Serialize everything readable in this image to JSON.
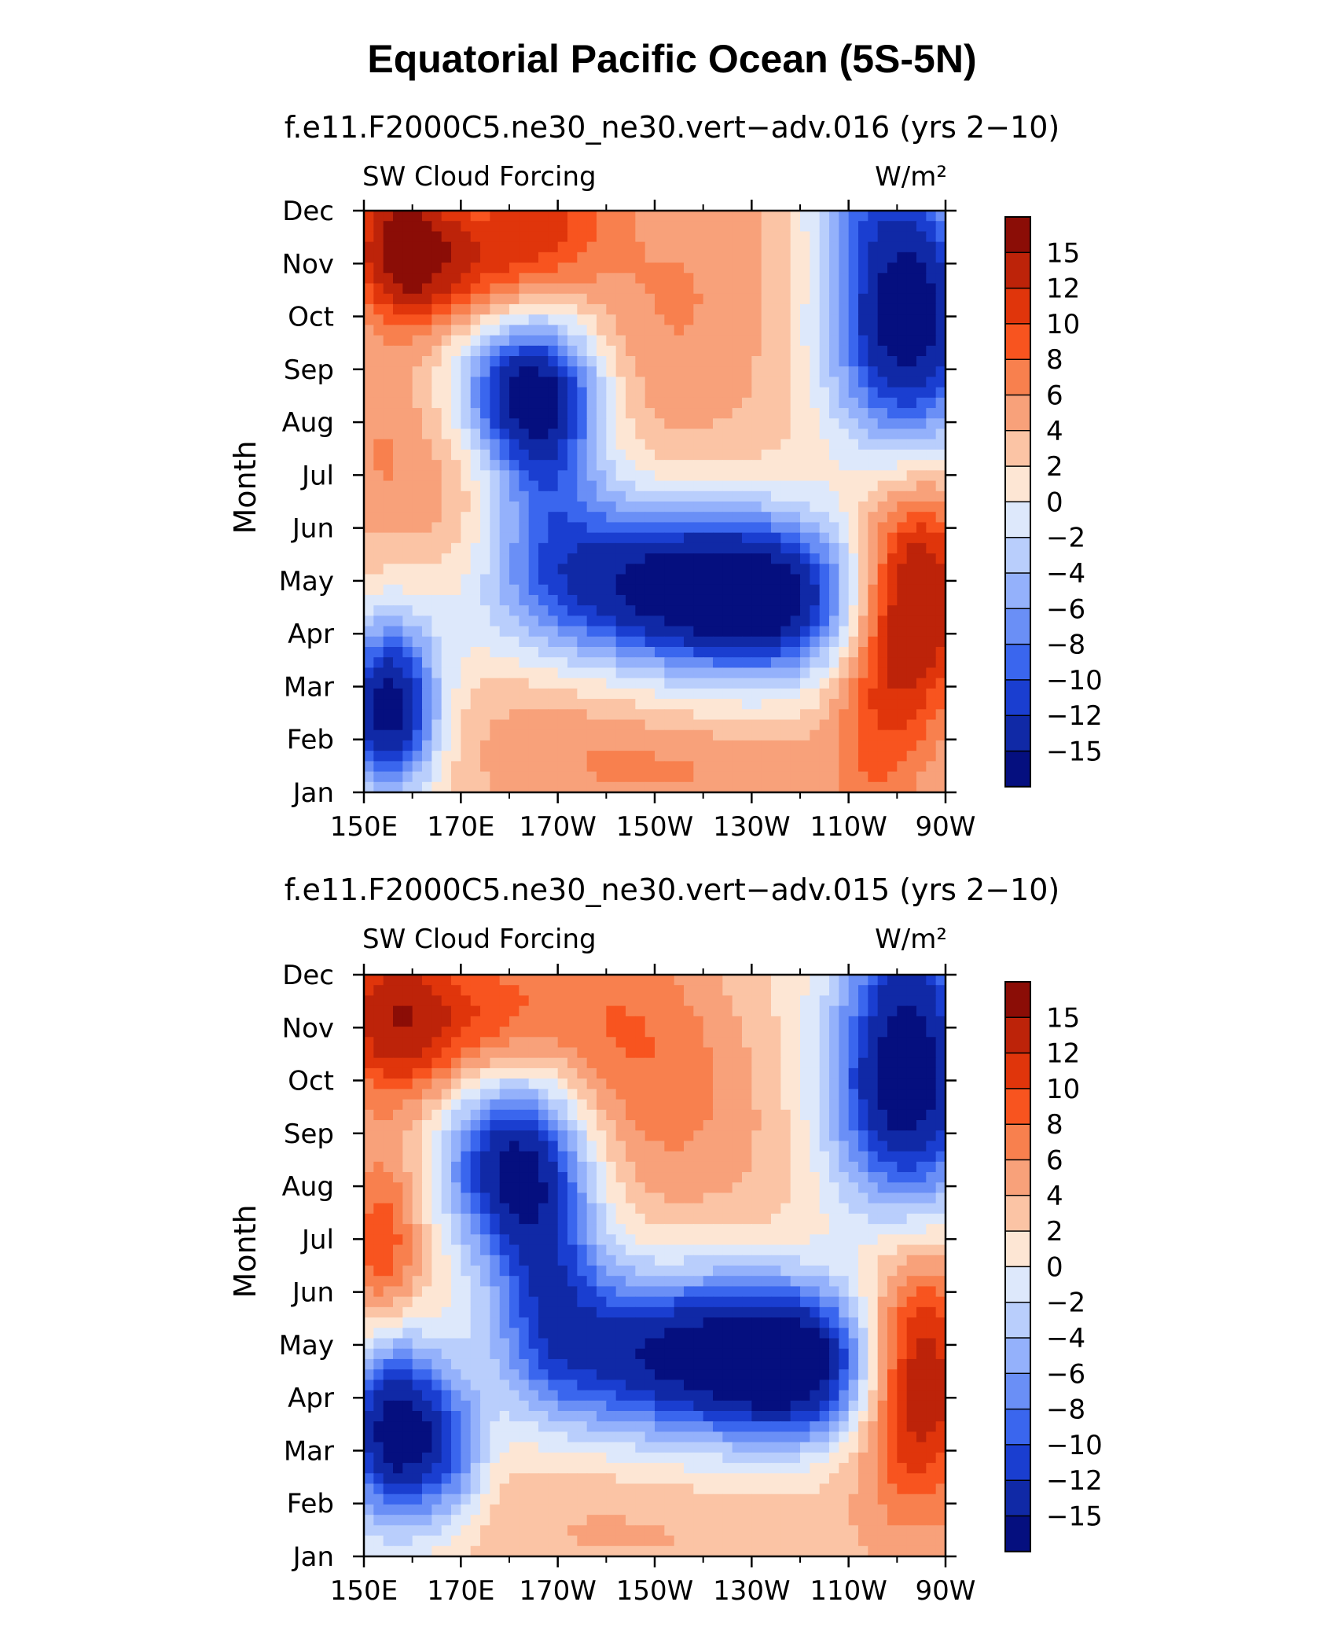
{
  "title": "Equatorial Pacific Ocean (5S-5N)",
  "colorbar_levels": [
    "15",
    "12",
    "10",
    "8",
    "6",
    "4",
    "2",
    "0",
    "−2",
    "−4",
    "−6",
    "−8",
    "−10",
    "−12",
    "−15"
  ],
  "colorbar_colors": [
    "#8b0d06",
    "#bd2309",
    "#e0350b",
    "#f8541f",
    "#f8804e",
    "#f8a17a",
    "#fbc4a5",
    "#fde6d4",
    "#dde8fb",
    "#b9cefc",
    "#94b1fb",
    "#6a8ff6",
    "#3a66ee",
    "#1a3ed0",
    "#1029a6",
    "#050f7f"
  ],
  "chart_data": [
    {
      "type": "heatmap",
      "title": "f.e11.F2000C5.ne30_ne30.vert−adv.016 (yrs 2−10)",
      "left_label": "SW Cloud Forcing",
      "units": "W/m²",
      "xlabel": "",
      "ylabel": "Month",
      "x_tick_labels": [
        "150E",
        "170E",
        "170W",
        "150W",
        "130W",
        "110W",
        "90W"
      ],
      "x_tick_lon_east": [
        150,
        170,
        190,
        210,
        230,
        250,
        270
      ],
      "xlim": [
        150,
        270
      ],
      "y_tick_labels": [
        "Jan",
        "Feb",
        "Mar",
        "Apr",
        "May",
        "Jun",
        "Jul",
        "Aug",
        "Sep",
        "Oct",
        "Nov",
        "Dec"
      ],
      "features": [
        {
          "lon": 158,
          "month": 10.3,
          "value": 16,
          "width": 10,
          "height": 1.3
        },
        {
          "lon": 172,
          "month": 10.0,
          "value": 10,
          "width": 16,
          "height": 1.2
        },
        {
          "lon": 188,
          "month": 11.0,
          "value": 9,
          "width": 14,
          "height": 1.4
        },
        {
          "lon": 212,
          "month": 8.8,
          "value": 6,
          "width": 22,
          "height": 2.6
        },
        {
          "lon": 228,
          "month": 10.6,
          "value": 4,
          "width": 18,
          "height": 1.6
        },
        {
          "lon": 154,
          "month": 6.4,
          "value": 6,
          "width": 10,
          "height": 1.8
        },
        {
          "lon": 168,
          "month": 5.6,
          "value": 5,
          "width": 10,
          "height": 1.8
        },
        {
          "lon": 184,
          "month": 7.6,
          "value": -14,
          "width": 14,
          "height": 1.4
        },
        {
          "lon": 188,
          "month": 6.0,
          "value": -5,
          "width": 12,
          "height": 2.2
        },
        {
          "lon": 212,
          "month": 3.9,
          "value": -16,
          "width": 30,
          "height": 1.6
        },
        {
          "lon": 235,
          "month": 3.6,
          "value": -9,
          "width": 18,
          "height": 1.4
        },
        {
          "lon": 262,
          "month": 9.0,
          "value": -18,
          "width": 16,
          "height": 2.6
        },
        {
          "lon": 252,
          "month": 11.4,
          "value": -2,
          "width": 12,
          "height": 1.2
        },
        {
          "lon": 264,
          "month": 3.8,
          "value": 16,
          "width": 12,
          "height": 2.2
        },
        {
          "lon": 256,
          "month": 1.4,
          "value": 8,
          "width": 10,
          "height": 2.4
        },
        {
          "lon": 155,
          "month": 1.6,
          "value": -17,
          "width": 10,
          "height": 1.6
        },
        {
          "lon": 190,
          "month": 1.4,
          "value": 5,
          "width": 22,
          "height": 1.4
        },
        {
          "lon": 215,
          "month": 0.4,
          "value": 6,
          "width": 30,
          "height": 1.0
        },
        {
          "lon": 170,
          "month": 3.0,
          "value": 2,
          "width": 14,
          "height": 1.2
        }
      ]
    },
    {
      "type": "heatmap",
      "title": "f.e11.F2000C5.ne30_ne30.vert−adv.015 (yrs 2−10)",
      "left_label": "SW Cloud Forcing",
      "units": "W/m²",
      "xlabel": "",
      "ylabel": "Month",
      "x_tick_labels": [
        "150E",
        "170E",
        "170W",
        "150W",
        "130W",
        "110W",
        "90W"
      ],
      "x_tick_lon_east": [
        150,
        170,
        190,
        210,
        230,
        250,
        270
      ],
      "xlim": [
        150,
        270
      ],
      "y_tick_labels": [
        "Jan",
        "Feb",
        "Mar",
        "Apr",
        "May",
        "Jun",
        "Jul",
        "Aug",
        "Sep",
        "Oct",
        "Nov",
        "Dec"
      ],
      "features": [
        {
          "lon": 156,
          "month": 10.2,
          "value": 14,
          "width": 12,
          "height": 1.5
        },
        {
          "lon": 174,
          "month": 10.0,
          "value": 9,
          "width": 14,
          "height": 1.4
        },
        {
          "lon": 198,
          "month": 10.2,
          "value": 7,
          "width": 22,
          "height": 2.0
        },
        {
          "lon": 214,
          "month": 8.6,
          "value": 6,
          "width": 20,
          "height": 2.4
        },
        {
          "lon": 232,
          "month": 10.6,
          "value": 2,
          "width": 16,
          "height": 1.6
        },
        {
          "lon": 154,
          "month": 5.8,
          "value": 10,
          "width": 8,
          "height": 1.8
        },
        {
          "lon": 166,
          "month": 5.2,
          "value": 3,
          "width": 10,
          "height": 1.8
        },
        {
          "lon": 180,
          "month": 7.5,
          "value": -14,
          "width": 14,
          "height": 1.8
        },
        {
          "lon": 188,
          "month": 5.4,
          "value": -7,
          "width": 12,
          "height": 2.4
        },
        {
          "lon": 216,
          "month": 3.8,
          "value": -16,
          "width": 30,
          "height": 1.6
        },
        {
          "lon": 240,
          "month": 3.6,
          "value": -11,
          "width": 16,
          "height": 1.4
        },
        {
          "lon": 262,
          "month": 9.0,
          "value": -18,
          "width": 16,
          "height": 2.6
        },
        {
          "lon": 262,
          "month": 11.4,
          "value": -2,
          "width": 10,
          "height": 1.2
        },
        {
          "lon": 264,
          "month": 3.4,
          "value": 16,
          "width": 12,
          "height": 2.4
        },
        {
          "lon": 156,
          "month": 2.4,
          "value": -17,
          "width": 10,
          "height": 1.8
        },
        {
          "lon": 168,
          "month": 2.0,
          "value": -6,
          "width": 8,
          "height": 1.4
        },
        {
          "lon": 190,
          "month": 1.2,
          "value": 4,
          "width": 22,
          "height": 1.4
        },
        {
          "lon": 215,
          "month": 0.5,
          "value": 4,
          "width": 28,
          "height": 1.0
        }
      ]
    }
  ]
}
